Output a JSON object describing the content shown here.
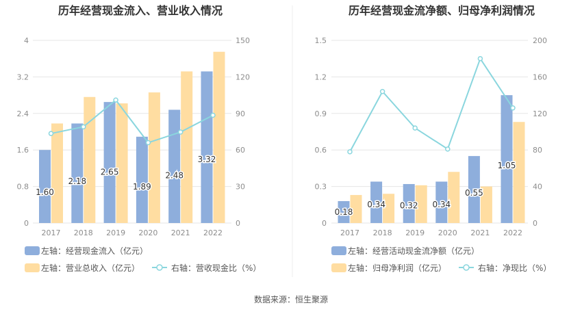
{
  "source_label": "数据来源：恒生聚源",
  "colors": {
    "blue_bar": "#8EAEDC",
    "orange_bar": "#FFDDA1",
    "line": "#8AD6DE",
    "grid": "#E6E6E6",
    "axis_text": "#8C8C8C",
    "title": "#333333",
    "divider": "#EEEEEE"
  },
  "chart_data": [
    {
      "type": "bar",
      "title": "历年经营现金流入、营业收入情况",
      "categories": [
        "2017",
        "2018",
        "2019",
        "2020",
        "2021",
        "2022"
      ],
      "left_axis": {
        "ticks": [
          "0",
          "0.8",
          "1.6",
          "2.4",
          "3.2",
          "4"
        ],
        "range": [
          0,
          4
        ]
      },
      "right_axis": {
        "ticks": [
          "0",
          "30",
          "60",
          "90",
          "120",
          "150"
        ],
        "range": [
          0,
          150
        ]
      },
      "series": [
        {
          "name": "左轴：经营现金流入（亿元）",
          "type": "bar",
          "axis": "left",
          "values": [
            1.6,
            2.18,
            2.65,
            1.89,
            2.48,
            3.32
          ],
          "labels": [
            "1.60",
            "2.18",
            "2.65",
            "1.89",
            "2.48",
            "3.32"
          ]
        },
        {
          "name": "左轴：营业总收入（亿元）",
          "type": "bar",
          "axis": "left",
          "values": [
            2.18,
            2.76,
            2.62,
            2.86,
            3.32,
            3.75
          ]
        },
        {
          "name": "右轴：营收现金比（%）",
          "type": "line",
          "axis": "right",
          "values": [
            73.5,
            79.0,
            101.0,
            66.0,
            74.7,
            88.5
          ]
        }
      ]
    },
    {
      "type": "bar",
      "title": "历年经营现金流净额、归母净利润情况",
      "categories": [
        "2017",
        "2018",
        "2019",
        "2020",
        "2021",
        "2022"
      ],
      "left_axis": {
        "ticks": [
          "0",
          "0.3",
          "0.6",
          "0.9",
          "1.2",
          "1.5"
        ],
        "range": [
          0,
          1.5
        ]
      },
      "right_axis": {
        "ticks": [
          "0",
          "40",
          "80",
          "120",
          "160",
          "200"
        ],
        "range": [
          0,
          200
        ]
      },
      "series": [
        {
          "name": "左轴：经营活动现金流净额（亿元）",
          "type": "bar",
          "axis": "left",
          "values": [
            0.18,
            0.34,
            0.32,
            0.34,
            0.55,
            1.05
          ],
          "labels": [
            "0.18",
            "0.34",
            "0.32",
            "0.34",
            "0.55",
            "1.05"
          ]
        },
        {
          "name": "左轴：归母净利润（亿元）",
          "type": "bar",
          "axis": "left",
          "values": [
            0.23,
            0.24,
            0.31,
            0.42,
            0.3,
            0.83
          ]
        },
        {
          "name": "右轴：净现比（%）",
          "type": "line",
          "axis": "right",
          "values": [
            78,
            144,
            104,
            81,
            180,
            126
          ]
        }
      ]
    }
  ]
}
